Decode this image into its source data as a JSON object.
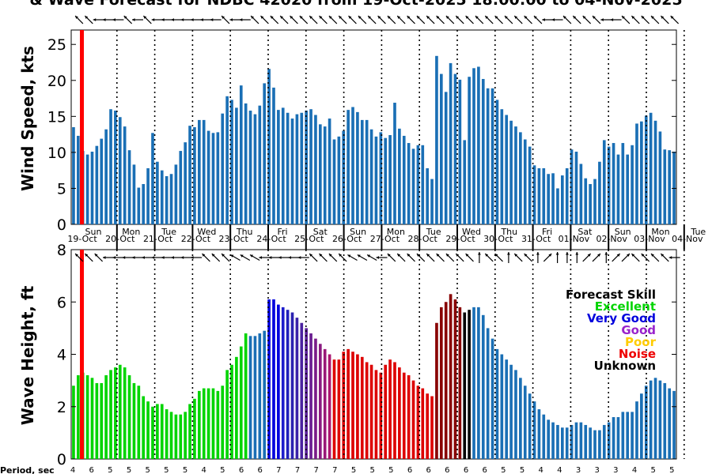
{
  "chart_data": [
    {
      "type": "bar",
      "title": "& Wave Forecast for NDBC 42020 from 19-Oct-2025 18:00:00 to 04-Nov-2025",
      "ylabel": "Wind Speed, kts",
      "ylim": [
        0,
        27
      ],
      "yticks": [
        0,
        5,
        10,
        15,
        20,
        25
      ],
      "bar_color": "#1a6fb5",
      "values": [
        13.5,
        12.3,
        10.2,
        9.7,
        10.1,
        10.9,
        11.9,
        13.2,
        16.0,
        15.8,
        14.9,
        13.6,
        10.3,
        8.3,
        5.1,
        5.6,
        7.8,
        12.7,
        8.7,
        7.5,
        6.7,
        7.0,
        8.3,
        10.2,
        11.4,
        13.7,
        13.5,
        14.5,
        14.5,
        13.0,
        12.7,
        12.8,
        15.4,
        17.8,
        17.3,
        16.2,
        19.3,
        16.8,
        15.8,
        15.3,
        16.5,
        19.6,
        21.6,
        19.0,
        15.9,
        16.2,
        15.5,
        14.7,
        15.3,
        15.5,
        15.8,
        16.0,
        15.2,
        13.9,
        13.6,
        14.7,
        11.8,
        12.2,
        13.0,
        15.9,
        16.3,
        15.6,
        14.5,
        14.5,
        13.2,
        12.2,
        12.8,
        12.0,
        12.4,
        16.9,
        13.3,
        12.3,
        11.3,
        10.5,
        11.0,
        11.0,
        7.8,
        6.3,
        23.4,
        20.9,
        18.4,
        22.4,
        20.9,
        20.1,
        11.7,
        20.5,
        21.7,
        21.9,
        20.2,
        18.9,
        18.9,
        17.3,
        16.0,
        15.2,
        14.4,
        13.6,
        12.8,
        11.8,
        10.8,
        8.2,
        7.8,
        7.8,
        7.0,
        7.1,
        5.0,
        6.8,
        7.8,
        10.4,
        10.1,
        8.4,
        6.4,
        5.6,
        6.3,
        8.7,
        11.7,
        10.8,
        11.3,
        9.7,
        11.3,
        9.7,
        11.0,
        14.0,
        14.3,
        15.1,
        15.5,
        14.4,
        12.9,
        10.4,
        10.3,
        10.1
      ],
      "day_labels": [
        "Sun",
        "Mon",
        "Tue",
        "Wed",
        "Thu",
        "Fri",
        "Sat",
        "Sun",
        "Mon",
        "Tue",
        "Wed",
        "Thu",
        "Fri",
        "Sat",
        "Sun",
        "Mon",
        "Tue"
      ],
      "date_labels": [
        "19-Oct",
        "20-Oct",
        "21-Oct",
        "22-Oct",
        "23-Oct",
        "24-Oct",
        "25-Oct",
        "26-Oct",
        "27-Oct",
        "28-Oct",
        "29-Oct",
        "30-Oct",
        "31-Oct",
        "01-Nov",
        "02-Nov",
        "03-Nov",
        "04-Nov"
      ],
      "wind_dirs_deg": [
        315,
        315,
        270,
        270,
        270,
        315,
        270,
        315,
        270,
        270,
        270,
        270,
        270,
        270,
        270,
        315,
        270,
        270,
        315,
        315,
        315,
        315,
        315,
        315,
        315,
        315,
        315,
        315,
        315,
        315,
        315,
        315,
        315,
        315,
        315,
        315,
        315,
        315,
        315,
        315,
        315,
        315,
        315,
        315,
        315,
        315,
        315,
        315,
        270,
        270,
        315,
        315,
        315,
        315,
        270,
        270,
        315,
        315,
        315,
        315,
        315,
        315
      ]
    },
    {
      "type": "bar",
      "ylabel": "Wave Height, ft",
      "ylim": [
        0,
        8
      ],
      "yticks": [
        0,
        2,
        4,
        6,
        8
      ],
      "xlabel": "Period, sec",
      "values": [
        2.8,
        3.2,
        3.3,
        3.2,
        3.1,
        2.9,
        2.9,
        3.2,
        3.4,
        3.5,
        3.6,
        3.5,
        3.2,
        2.9,
        2.8,
        2.4,
        2.2,
        2.0,
        2.1,
        2.1,
        1.9,
        1.8,
        1.7,
        1.7,
        1.8,
        2.1,
        2.3,
        2.6,
        2.7,
        2.7,
        2.7,
        2.6,
        2.8,
        3.4,
        3.6,
        3.9,
        4.3,
        4.8,
        4.7,
        4.7,
        4.8,
        4.9,
        6.1,
        6.1,
        5.9,
        5.8,
        5.7,
        5.6,
        5.4,
        5.2,
        5.0,
        4.8,
        4.6,
        4.4,
        4.2,
        4.0,
        3.8,
        3.8,
        4.1,
        4.2,
        4.1,
        4.0,
        3.9,
        3.7,
        3.6,
        3.4,
        3.3,
        3.6,
        3.8,
        3.7,
        3.5,
        3.3,
        3.2,
        3.0,
        2.8,
        2.7,
        2.5,
        2.4,
        5.2,
        5.8,
        6.0,
        6.3,
        6.1,
        5.8,
        5.6,
        5.7,
        5.8,
        5.8,
        5.5,
        5.0,
        4.6,
        4.2,
        4.0,
        3.8,
        3.6,
        3.4,
        3.1,
        2.8,
        2.5,
        2.2,
        1.9,
        1.7,
        1.5,
        1.4,
        1.3,
        1.2,
        1.2,
        1.3,
        1.4,
        1.4,
        1.3,
        1.2,
        1.1,
        1.1,
        1.3,
        1.4,
        1.6,
        1.6,
        1.8,
        1.8,
        1.8,
        2.2,
        2.5,
        2.8,
        3.0,
        3.1,
        3.0,
        2.9,
        2.7,
        2.6
      ],
      "colors": [
        "#00d400",
        "#00d400",
        "#00d400",
        "#00d400",
        "#00d400",
        "#00d400",
        "#00d400",
        "#00d400",
        "#00d400",
        "#00d400",
        "#00d400",
        "#00d400",
        "#00d400",
        "#00d400",
        "#00d400",
        "#00d400",
        "#00d400",
        "#00d400",
        "#00d400",
        "#00d400",
        "#00d400",
        "#00d400",
        "#00d400",
        "#00d400",
        "#00d400",
        "#00d400",
        "#00d400",
        "#00d400",
        "#00d400",
        "#00d400",
        "#00d400",
        "#00d400",
        "#00d400",
        "#00d400",
        "#00d400",
        "#00d400",
        "#00d400",
        "#00d400",
        "#1a6fb5",
        "#1a6fb5",
        "#1a6fb5",
        "#1a6fb5",
        "#0000dd",
        "#0000dd",
        "#0000dd",
        "#1d1dcc",
        "#2020bb",
        "#2a22b0",
        "#3a22a8",
        "#4a22a0",
        "#5a2098",
        "#6a1e90",
        "#7a1c88",
        "#8a1a80",
        "#9a1878",
        "#aa1670",
        "#dd0000",
        "#dd0000",
        "#dd0000",
        "#dd0000",
        "#dd0000",
        "#dd0000",
        "#dd0000",
        "#dd0000",
        "#dd0000",
        "#dd0000",
        "#dd0000",
        "#dd0000",
        "#dd0000",
        "#dd0000",
        "#dd0000",
        "#dd0000",
        "#dd0000",
        "#dd0000",
        "#dd0000",
        "#dd0000",
        "#dd0000",
        "#dd0000",
        "#880000",
        "#880000",
        "#880000",
        "#880000",
        "#880000",
        "#880000",
        "#000000",
        "#000000",
        "#1a6fb5",
        "#1a6fb5",
        "#1a6fb5",
        "#1a6fb5",
        "#1a6fb5",
        "#1a6fb5",
        "#1a6fb5",
        "#1a6fb5",
        "#1a6fb5",
        "#1a6fb5",
        "#1a6fb5",
        "#1a6fb5",
        "#1a6fb5",
        "#1a6fb5",
        "#1a6fb5",
        "#1a6fb5",
        "#1a6fb5",
        "#1a6fb5",
        "#1a6fb5",
        "#1a6fb5",
        "#1a6fb5",
        "#1a6fb5",
        "#1a6fb5",
        "#1a6fb5",
        "#1a6fb5",
        "#1a6fb5",
        "#1a6fb5",
        "#1a6fb5",
        "#1a6fb5",
        "#1a6fb5",
        "#1a6fb5",
        "#1a6fb5",
        "#1a6fb5",
        "#1a6fb5",
        "#1a6fb5",
        "#1a6fb5",
        "#1a6fb5",
        "#1a6fb5",
        "#1a6fb5",
        "#1a6fb5",
        "#1a6fb5",
        "#1a6fb5",
        "#1a6fb5",
        "#1a6fb5"
      ],
      "period_labels": [
        "4",
        "6",
        "5",
        "5",
        "5",
        "5",
        "5",
        "4",
        "5",
        "6",
        "6",
        "7",
        "7",
        "7",
        "7",
        "5",
        "5",
        "5",
        "6",
        "6",
        "6",
        "6",
        "6",
        "5",
        "5",
        "4",
        "4",
        "3",
        "3",
        "3",
        "4",
        "5",
        "5"
      ],
      "wave_dirs_deg": [
        315,
        315,
        315,
        270,
        270,
        270,
        270,
        270,
        270,
        270,
        270,
        270,
        270,
        315,
        315,
        315,
        300,
        300,
        300,
        270,
        270,
        270,
        270,
        270,
        315,
        315,
        315,
        315,
        300,
        300,
        300,
        270,
        315,
        315,
        315,
        315,
        315,
        315,
        315,
        315,
        315,
        0,
        315,
        315,
        0,
        315,
        315,
        0,
        45,
        0,
        0,
        0,
        45,
        45,
        0,
        45,
        45,
        315,
        315,
        315,
        315,
        270
      ],
      "legend": {
        "title": "Forecast Skill",
        "items": [
          {
            "label": "Excellent",
            "color": "#00d400"
          },
          {
            "label": "Very Good",
            "color": "#0000dd"
          },
          {
            "label": "Good",
            "color": "#9922cc"
          },
          {
            "label": "Poor",
            "color": "#ffcc00"
          },
          {
            "label": "Noise",
            "color": "#ee0000"
          },
          {
            "label": "Unknown",
            "color": "#000000"
          }
        ]
      }
    }
  ],
  "now_marker_color": "#ff0000"
}
